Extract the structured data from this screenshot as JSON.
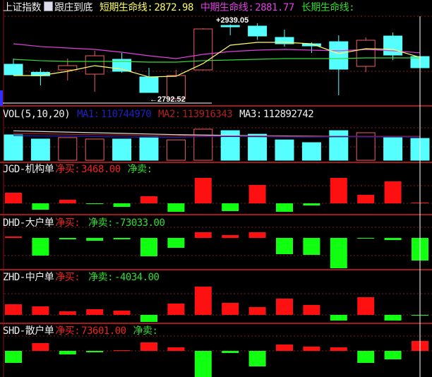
{
  "main_panel": {
    "index_name": "上证指数",
    "indicator_icon": "formula-icon",
    "indicator_name": "跟庄到底",
    "short_label": "短期生命线:",
    "short_value": "2872.98",
    "mid_label": "中期生命线:",
    "mid_value": "2881.77",
    "long_label": "长期生命线:",
    "high_label": "2939.05",
    "low_label": "2792.52"
  },
  "vol_panel": {
    "title": "VOL(5,10,20)",
    "ma1_label": "MA1:",
    "ma1_value": "110744970",
    "ma2_label": "MA2:",
    "ma2_value": "113916343",
    "ma3_label": "MA3:",
    "ma3_value": "112892742"
  },
  "flow_panels": [
    {
      "title": "JGD-机构单",
      "buy_label": "净买:",
      "buy_value": "3468.00",
      "sell_label": "净卖:",
      "sell_value": ""
    },
    {
      "title": "DHD-大户单",
      "buy_label": "净买:",
      "buy_value": "",
      "sell_label": "净卖:",
      "sell_value": "-73033.00"
    },
    {
      "title": "ZHD-中户单",
      "buy_label": "净买:",
      "buy_value": "",
      "sell_label": "净卖:",
      "sell_value": "-4034.00"
    },
    {
      "title": "SHD-散户单",
      "buy_label": "净买:",
      "buy_value": "73601.00",
      "sell_label": "净卖:",
      "sell_value": ""
    }
  ],
  "colors": {
    "up": "#f06060",
    "down": "#55ffff",
    "buy": "#ff1010",
    "sell": "#11ff11",
    "short_line": "#ffff66",
    "mid_line": "#e040e0",
    "long_line": "#33dd33",
    "background": "#000000"
  },
  "chart_data": {
    "type": "candlestick",
    "candles": [
      {
        "o": 2859.6,
        "h": 2870.6,
        "l": 2839.1,
        "c": 2839.1
      },
      {
        "o": 2844.1,
        "h": 2851.4,
        "l": 2818.5,
        "c": 2837.2
      },
      {
        "o": 2848.6,
        "h": 2870.6,
        "l": 2828.1,
        "c": 2856.9
      },
      {
        "o": 2840.4,
        "h": 2885.6,
        "l": 2806.2,
        "c": 2876.0
      },
      {
        "o": 2869.2,
        "h": 2881.5,
        "l": 2843.2,
        "c": 2845.9
      },
      {
        "o": 2835.0,
        "h": 2852.8,
        "l": 2804.8,
        "c": 2804.8
      },
      {
        "o": 2792.5,
        "h": 2848.6,
        "l": 2792.52,
        "c": 2837.7
      },
      {
        "o": 2848.6,
        "h": 2929.5,
        "l": 2847.3,
        "c": 2928.1
      },
      {
        "o": 2934.9,
        "h": 2937.0,
        "l": 2915.8,
        "c": 2932.2
      },
      {
        "o": 2933.6,
        "h": 2939.05,
        "l": 2907.0,
        "c": 2914.4
      },
      {
        "o": 2911.7,
        "h": 2926.7,
        "l": 2893.8,
        "c": 2899.3
      },
      {
        "o": 2899.3,
        "h": 2902.1,
        "l": 2881.5,
        "c": 2895.2
      },
      {
        "o": 2903.4,
        "h": 2915.8,
        "l": 2799.3,
        "c": 2850.0
      },
      {
        "o": 2855.5,
        "h": 2911.7,
        "l": 2844.5,
        "c": 2906.2
      },
      {
        "o": 2914.4,
        "h": 2921.2,
        "l": 2867.8,
        "c": 2877.4
      },
      {
        "o": 2874.6,
        "h": 2896.0,
        "l": 2844.5,
        "c": 2852.8
      }
    ],
    "short_line": [
      2837.7,
      2837.7,
      2845.9,
      2856.9,
      2850.0,
      2835.0,
      2836.3,
      2861.0,
      2896.6,
      2902.1,
      2902.1,
      2899.3,
      2880.2,
      2889.7,
      2888.4,
      2872.98
    ],
    "mid_line": [
      2899.3,
      2893.9,
      2891.1,
      2888.4,
      2882.9,
      2876.0,
      2870.6,
      2878.8,
      2884.3,
      2887.0,
      2888.4,
      2887.0,
      2885.6,
      2888.4,
      2885.6,
      2881.77
    ],
    "long_line": [
      2869.2,
      2866.5,
      2865.1,
      2865.1,
      2865.1,
      2863.7,
      2863.7,
      2866.5,
      2867.8,
      2869.2,
      2870.6,
      2870.6,
      2870.6,
      2871.9,
      2871.9,
      2871.9
    ],
    "volume": [
      121000000,
      101000000,
      108000000,
      101000000,
      101000000,
      111000000,
      97000000,
      148000000,
      141000000,
      124000000,
      97000000,
      84000000,
      141000000,
      131000000,
      114000000,
      104000000
    ],
    "vol_ma1": [
      118000000,
      116000000,
      115000000,
      113000000,
      111000000,
      110000000,
      109000000,
      112000000,
      113000000,
      112000000,
      111000000,
      110000000,
      112000000,
      111000000,
      111000000,
      110744970
    ],
    "vol_ma2": [
      128000000,
      126000000,
      124000000,
      122000000,
      120000000,
      118000000,
      117000000,
      116000000,
      115000000,
      115000000,
      114000000,
      114000000,
      114000000,
      114000000,
      114000000,
      113916343
    ],
    "vol_ma3": [
      140000000,
      137000000,
      134000000,
      131000000,
      128000000,
      125000000,
      122000000,
      120000000,
      118000000,
      117000000,
      116000000,
      115000000,
      114000000,
      113000000,
      113000000,
      112892742
    ],
    "jgd": [
      52500,
      -31500,
      17500,
      -3500,
      -17500,
      35000,
      -42000,
      126000,
      -38500,
      91000,
      -42000,
      -10500,
      126000,
      42000,
      108500,
      3468
    ],
    "dhd": [
      4560,
      -57000,
      -4560,
      -9120,
      -4560,
      -59280,
      -31920,
      18240,
      9120,
      18240,
      -52440,
      -54720,
      -98040,
      -2280,
      -6840,
      -73033
    ],
    "zhd": [
      60000,
      48000,
      20000,
      32000,
      24000,
      -40000,
      64000,
      160000,
      68000,
      44000,
      92000,
      56000,
      -32000,
      100000,
      -32000,
      -4034
    ],
    "shd": [
      -89250,
      57750,
      -26250,
      -10500,
      2625,
      63000,
      26250,
      -194250,
      -15750,
      -115500,
      47250,
      31500,
      26250,
      -89250,
      -63000,
      73601
    ]
  }
}
